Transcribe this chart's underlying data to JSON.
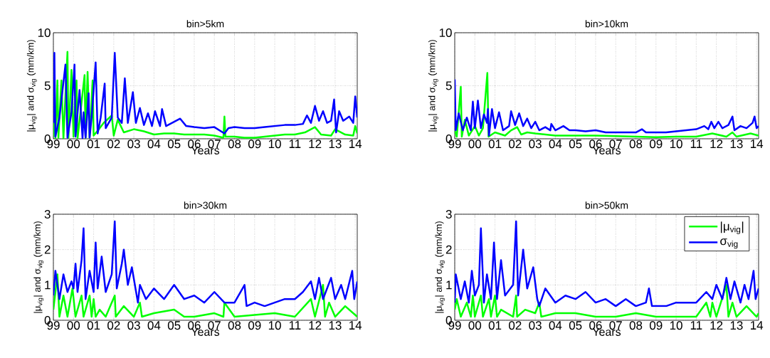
{
  "chart_data": [
    {
      "type": "line",
      "title": "bin>5km",
      "xlabel": "Years",
      "ylabel": "|μ$_{vig}$| and σ$_{vig}$ (mm/km)",
      "xlim": [
        1999,
        2014.1
      ],
      "ylim": [
        0,
        10
      ],
      "xticks": [
        {
          "value": 1999,
          "label": "99"
        },
        {
          "value": 2000,
          "label": "00"
        },
        {
          "value": 2001,
          "label": "01"
        },
        {
          "value": 2002,
          "label": "02"
        },
        {
          "value": 2003,
          "label": "03"
        },
        {
          "value": 2004,
          "label": "04"
        },
        {
          "value": 2005,
          "label": "05"
        },
        {
          "value": 2006,
          "label": "06"
        },
        {
          "value": 2007,
          "label": "07"
        },
        {
          "value": 2008,
          "label": "08"
        },
        {
          "value": 2009,
          "label": "09"
        },
        {
          "value": 2010,
          "label": "10"
        },
        {
          "value": 2011,
          "label": "11"
        },
        {
          "value": 2012,
          "label": "12"
        },
        {
          "value": 2013,
          "label": "13"
        },
        {
          "value": 2014,
          "label": "14"
        }
      ],
      "yticks": [
        0,
        5,
        10
      ],
      "grid": true,
      "series": [
        {
          "color": "#00ff00",
          "x": [
            1999.0,
            1999.05,
            1999.1,
            1999.2,
            1999.25,
            1999.4,
            1999.5,
            1999.7,
            1999.75,
            1999.9,
            2000.0,
            2000.15,
            2000.2,
            2000.55,
            2000.6,
            2000.7,
            2000.8,
            2000.95,
            2001.0,
            2001.3,
            2001.5,
            2001.9,
            2002.0,
            2002.2,
            2002.5,
            2003.0,
            2003.5,
            2004.0,
            2004.5,
            2005.0,
            2005.5,
            2006.0,
            2006.5,
            2007.0,
            2007.45,
            2007.5,
            2007.55,
            2008.0,
            2008.5,
            2009.0,
            2009.5,
            2010.0,
            2010.5,
            2011.0,
            2011.5,
            2012.0,
            2012.3,
            2012.8,
            2013.0,
            2013.5,
            2013.9,
            2014.0,
            2014.1
          ],
          "values": [
            0.2,
            4.5,
            0,
            5.5,
            0.1,
            5.5,
            0,
            8.2,
            0.1,
            6.5,
            0.2,
            5.5,
            0,
            6.0,
            0.1,
            6.3,
            0.1,
            5.5,
            0.3,
            1.0,
            1.5,
            2.2,
            0.3,
            1.8,
            0.6,
            0.9,
            0.7,
            0.4,
            0.5,
            0.5,
            0.4,
            0.4,
            0.4,
            0.3,
            0.1,
            2.1,
            0.2,
            0.2,
            0.1,
            0.1,
            0.2,
            0.3,
            0.4,
            0.4,
            0.6,
            1.1,
            0.4,
            0.3,
            0.9,
            0.4,
            0.3,
            1.2,
            0.5
          ]
        },
        {
          "color": "#0000ff",
          "x": [
            1999.0,
            1999.05,
            1999.1,
            1999.3,
            1999.6,
            1999.7,
            1999.9,
            2000.05,
            2000.1,
            2000.3,
            2000.45,
            2000.5,
            2000.6,
            2000.75,
            2000.8,
            2000.9,
            2001.1,
            2001.2,
            2001.35,
            2001.55,
            2001.6,
            2001.9,
            2002.05,
            2002.2,
            2002.4,
            2002.55,
            2002.7,
            2002.95,
            2003.1,
            2003.3,
            2003.5,
            2003.7,
            2003.9,
            2004.05,
            2004.3,
            2004.4,
            2004.6,
            2005.0,
            2005.3,
            2005.6,
            2006.0,
            2006.5,
            2007.0,
            2007.5,
            2007.7,
            2008.0,
            2008.5,
            2009.0,
            2009.5,
            2010.0,
            2010.5,
            2011.0,
            2011.4,
            2011.6,
            2011.8,
            2012.0,
            2012.2,
            2012.4,
            2012.6,
            2012.8,
            2012.95,
            2013.05,
            2013.2,
            2013.4,
            2013.7,
            2013.9,
            2014.0,
            2014.1
          ],
          "values": [
            1.5,
            8.1,
            0.2,
            2.0,
            7.0,
            0.1,
            2.5,
            7.0,
            0.2,
            4.6,
            0,
            2.5,
            0.1,
            4.3,
            0.1,
            2.0,
            7.2,
            0.5,
            2.0,
            5.2,
            1.0,
            2.0,
            8.1,
            2.0,
            1.5,
            5.7,
            1.5,
            4.4,
            1.5,
            2.9,
            1.3,
            2.4,
            1.2,
            2.6,
            1.2,
            2.8,
            1.2,
            1.6,
            1.9,
            1.2,
            1.1,
            1.0,
            1.1,
            0.5,
            1.0,
            1.1,
            1.0,
            1.0,
            1.1,
            1.2,
            1.3,
            1.3,
            1.4,
            2.2,
            1.5,
            3.1,
            1.7,
            2.6,
            1.5,
            1.7,
            3.7,
            0.6,
            2.6,
            1.7,
            2.1,
            1.5,
            4.0,
            2.0
          ]
        }
      ]
    },
    {
      "type": "line",
      "title": "bin>10km",
      "xlabel": "Years",
      "ylabel": "|μ$_{vig}$| and σ$_{vig}$ (mm/km)",
      "xlim": [
        1999,
        2014.1
      ],
      "ylim": [
        0,
        10
      ],
      "xticks": [
        {
          "value": 1999,
          "label": "99"
        },
        {
          "value": 2000,
          "label": "00"
        },
        {
          "value": 2001,
          "label": "01"
        },
        {
          "value": 2002,
          "label": "02"
        },
        {
          "value": 2003,
          "label": "03"
        },
        {
          "value": 2004,
          "label": "04"
        },
        {
          "value": 2005,
          "label": "05"
        },
        {
          "value": 2006,
          "label": "06"
        },
        {
          "value": 2007,
          "label": "07"
        },
        {
          "value": 2008,
          "label": "08"
        },
        {
          "value": 2009,
          "label": "09"
        },
        {
          "value": 2010,
          "label": "10"
        },
        {
          "value": 2011,
          "label": "11"
        },
        {
          "value": 2012,
          "label": "12"
        },
        {
          "value": 2013,
          "label": "13"
        },
        {
          "value": 2014,
          "label": "14"
        }
      ],
      "yticks": [
        0,
        5,
        10
      ],
      "grid": true,
      "series": [
        {
          "color": "#00ff00",
          "x": [
            1999.0,
            1999.1,
            1999.3,
            1999.35,
            1999.5,
            1999.7,
            2000.0,
            2000.2,
            2000.4,
            2000.62,
            2000.68,
            2001.0,
            2001.5,
            2001.8,
            2002.1,
            2002.3,
            2002.6,
            2003.0,
            2003.5,
            2004.0,
            2005.0,
            2006.0,
            2007.0,
            2008.0,
            2009.0,
            2010.0,
            2011.0,
            2011.8,
            2012.5,
            2012.8,
            2013.0,
            2013.7,
            2014.1
          ],
          "values": [
            0.8,
            0.2,
            4.9,
            0.2,
            1.8,
            0.3,
            1.2,
            0.3,
            1.0,
            6.2,
            0.2,
            0.6,
            0.3,
            0.8,
            1.1,
            0.4,
            0.6,
            0.5,
            0.4,
            0.3,
            0.3,
            0.3,
            0.25,
            0.2,
            0.15,
            0.2,
            0.2,
            0.5,
            0.2,
            0.6,
            0.2,
            0.5,
            0.3
          ]
        },
        {
          "color": "#0000ff",
          "x": [
            1999.0,
            1999.05,
            1999.2,
            1999.4,
            1999.6,
            1999.8,
            1999.9,
            2000.0,
            2000.15,
            2000.3,
            2000.45,
            2000.6,
            2000.65,
            2000.7,
            2000.85,
            2001.0,
            2001.2,
            2001.4,
            2001.7,
            2001.8,
            2002.0,
            2002.2,
            2002.4,
            2002.6,
            2002.8,
            2003.0,
            2003.2,
            2003.5,
            2003.75,
            2003.8,
            2004.0,
            2004.4,
            2004.7,
            2005.0,
            2005.5,
            2006.0,
            2006.5,
            2007.0,
            2007.5,
            2008.0,
            2008.3,
            2008.5,
            2009.0,
            2009.5,
            2010.0,
            2010.5,
            2011.0,
            2011.4,
            2011.6,
            2011.75,
            2011.9,
            2012.1,
            2012.3,
            2012.6,
            2012.8,
            2012.9,
            2013.2,
            2013.5,
            2013.8,
            2013.9,
            2014.0,
            2014.1
          ],
          "values": [
            5.6,
            0.8,
            2.4,
            0.8,
            2.0,
            0.8,
            3.5,
            1.0,
            3.6,
            1.0,
            2.3,
            1.5,
            2.8,
            0.3,
            2.8,
            1.0,
            2.5,
            0.8,
            1.2,
            2.6,
            1.3,
            2.4,
            1.2,
            1.9,
            1.0,
            1.6,
            0.8,
            1.1,
            0.8,
            1.4,
            0.8,
            1.2,
            0.8,
            0.8,
            0.7,
            0.8,
            0.6,
            0.6,
            0.6,
            0.6,
            0.9,
            0.6,
            0.6,
            0.6,
            0.7,
            0.8,
            0.9,
            1.2,
            0.9,
            1.6,
            1.0,
            1.6,
            1.0,
            1.3,
            2.1,
            0.8,
            1.2,
            1.0,
            1.5,
            2.1,
            1.0,
            1.2
          ]
        }
      ]
    },
    {
      "type": "line",
      "title": "bin>30km",
      "xlabel": "Years",
      "ylabel": "|μ$_{vig}$| and σ$_{vig}$ (mm/km)",
      "xlim": [
        1999,
        2014.1
      ],
      "ylim": [
        0,
        3
      ],
      "xticks": [
        {
          "value": 1999,
          "label": "99"
        },
        {
          "value": 2000,
          "label": "00"
        },
        {
          "value": 2001,
          "label": "01"
        },
        {
          "value": 2002,
          "label": "02"
        },
        {
          "value": 2003,
          "label": "03"
        },
        {
          "value": 2004,
          "label": "04"
        },
        {
          "value": 2005,
          "label": "05"
        },
        {
          "value": 2006,
          "label": "06"
        },
        {
          "value": 2007,
          "label": "07"
        },
        {
          "value": 2008,
          "label": "08"
        },
        {
          "value": 2009,
          "label": "09"
        },
        {
          "value": 2010,
          "label": "10"
        },
        {
          "value": 2011,
          "label": "11"
        },
        {
          "value": 2012,
          "label": "12"
        },
        {
          "value": 2013,
          "label": "13"
        },
        {
          "value": 2014,
          "label": "14"
        }
      ],
      "yticks": [
        0,
        1,
        2,
        3
      ],
      "grid": true,
      "series": [
        {
          "color": "#00ff00",
          "x": [
            1999.0,
            1999.2,
            1999.3,
            1999.5,
            1999.7,
            1999.95,
            2000.1,
            2000.4,
            2000.5,
            2000.8,
            2000.9,
            2001.0,
            2001.1,
            2001.3,
            2001.6,
            2002.05,
            2002.1,
            2002.5,
            2003.0,
            2003.3,
            2003.4,
            2004.0,
            2005.0,
            2005.5,
            2006.0,
            2007.0,
            2007.45,
            2007.5,
            2008.0,
            2009.0,
            2010.0,
            2011.0,
            2011.8,
            2012.0,
            2012.4,
            2012.5,
            2012.7,
            2013.0,
            2013.5,
            2014.0,
            2014.1
          ],
          "values": [
            0.3,
            1.3,
            0.1,
            0.7,
            0.1,
            0.9,
            0.1,
            0.7,
            0.1,
            0.7,
            0.1,
            0.6,
            0.1,
            0.3,
            0.1,
            0.7,
            0.1,
            0.4,
            0.1,
            0.5,
            0.1,
            0.2,
            0.3,
            0.1,
            0.1,
            0.2,
            0.1,
            0.5,
            0.1,
            0.15,
            0.2,
            0.1,
            0.6,
            0.1,
            1.0,
            0.1,
            0.5,
            0.1,
            0.4,
            0.15,
            0.1
          ]
        },
        {
          "color": "#0000ff",
          "x": [
            1999.0,
            1999.1,
            1999.3,
            1999.5,
            1999.7,
            1999.9,
            2000.0,
            2000.1,
            2000.2,
            2000.4,
            2000.5,
            2000.6,
            2000.8,
            2001.0,
            2001.1,
            2001.2,
            2001.4,
            2001.6,
            2001.9,
            2002.05,
            2002.15,
            2002.4,
            2002.5,
            2002.7,
            2002.9,
            2003.2,
            2003.3,
            2003.6,
            2004.0,
            2004.5,
            2005.0,
            2005.5,
            2006.0,
            2006.5,
            2007.0,
            2007.5,
            2008.0,
            2008.4,
            2008.5,
            2008.6,
            2009.0,
            2009.5,
            2010.0,
            2010.5,
            2011.0,
            2011.4,
            2011.8,
            2012.0,
            2012.2,
            2012.4,
            2012.8,
            2013.0,
            2013.3,
            2013.5,
            2013.85,
            2013.95,
            2014.1
          ],
          "values": [
            0.7,
            1.4,
            0.6,
            1.3,
            0.8,
            1.1,
            0.9,
            1.6,
            0.8,
            1.7,
            2.6,
            0.6,
            1.4,
            0.8,
            2.2,
            0.9,
            1.8,
            0.8,
            1.3,
            2.8,
            0.9,
            1.6,
            2.0,
            1.0,
            1.5,
            0.5,
            1.0,
            0.6,
            0.9,
            0.6,
            1.0,
            0.6,
            0.7,
            0.5,
            0.8,
            0.5,
            0.5,
            0.9,
            1.0,
            0.4,
            0.5,
            0.4,
            0.5,
            0.6,
            0.6,
            0.8,
            1.1,
            0.6,
            1.2,
            0.6,
            1.2,
            0.6,
            1.0,
            0.6,
            1.4,
            0.6,
            1.1
          ]
        }
      ]
    },
    {
      "type": "line",
      "title": "bin>50km",
      "xlabel": "Years",
      "ylabel": "|μ$_{vig}$| and σ$_{vig}$ (mm/km)",
      "xlim": [
        1999,
        2014.1
      ],
      "ylim": [
        0,
        3
      ],
      "xticks": [
        {
          "value": 1999,
          "label": "99"
        },
        {
          "value": 2000,
          "label": "00"
        },
        {
          "value": 2001,
          "label": "01"
        },
        {
          "value": 2002,
          "label": "02"
        },
        {
          "value": 2003,
          "label": "03"
        },
        {
          "value": 2004,
          "label": "04"
        },
        {
          "value": 2005,
          "label": "05"
        },
        {
          "value": 2006,
          "label": "06"
        },
        {
          "value": 2007,
          "label": "07"
        },
        {
          "value": 2008,
          "label": "08"
        },
        {
          "value": 2009,
          "label": "09"
        },
        {
          "value": 2010,
          "label": "10"
        },
        {
          "value": 2011,
          "label": "11"
        },
        {
          "value": 2012,
          "label": "12"
        },
        {
          "value": 2013,
          "label": "13"
        },
        {
          "value": 2014,
          "label": "14"
        }
      ],
      "yticks": [
        0,
        1,
        2,
        3
      ],
      "grid": true,
      "legend": "top right",
      "series": [
        {
          "name": "|μ$_{vig}$|",
          "color": "#00ff00",
          "x": [
            1999.0,
            1999.1,
            1999.3,
            1999.6,
            1999.8,
            1999.9,
            2000.0,
            2000.3,
            2000.4,
            2000.7,
            2000.8,
            2001.0,
            2001.1,
            2001.3,
            2001.9,
            2002.05,
            2002.1,
            2002.5,
            2003.0,
            2003.2,
            2003.3,
            2004.0,
            2005.0,
            2006.0,
            2007.0,
            2008.0,
            2009.0,
            2010.0,
            2011.0,
            2011.5,
            2011.7,
            2011.8,
            2012.0,
            2012.5,
            2012.6,
            2012.8,
            2013.0,
            2013.5,
            2014.0,
            2014.1
          ],
          "values": [
            0.3,
            0.6,
            0.1,
            0.5,
            0.1,
            0.7,
            0.1,
            0.7,
            0.1,
            0.6,
            0.1,
            0.7,
            0.1,
            0.3,
            0.1,
            0.7,
            0.1,
            0.3,
            0.2,
            0.5,
            0.1,
            0.2,
            0.2,
            0.1,
            0.1,
            0.2,
            0.1,
            0.1,
            0.1,
            0.5,
            0.1,
            0.5,
            0.1,
            1.0,
            0.1,
            0.5,
            0.1,
            0.4,
            0.1,
            0.2
          ]
        },
        {
          "name": "σ$_{vig}$",
          "color": "#0000ff",
          "x": [
            1999.0,
            1999.05,
            1999.3,
            1999.5,
            1999.7,
            1999.85,
            2000.0,
            2000.2,
            2000.3,
            2000.45,
            2000.6,
            2000.8,
            2000.95,
            2001.1,
            2001.3,
            2001.5,
            2001.9,
            2002.05,
            2002.15,
            2002.4,
            2002.6,
            2002.9,
            2003.1,
            2003.2,
            2003.5,
            2004.0,
            2004.5,
            2005.0,
            2005.5,
            2006.0,
            2006.5,
            2007.0,
            2007.5,
            2008.0,
            2008.5,
            2008.65,
            2008.8,
            2009.5,
            2010.0,
            2010.5,
            2011.0,
            2011.5,
            2011.8,
            2012.0,
            2012.3,
            2012.5,
            2012.7,
            2012.9,
            2013.2,
            2013.4,
            2013.6,
            2013.85,
            2013.95,
            2014.1
          ],
          "values": [
            0.5,
            1.3,
            0.6,
            1.1,
            0.5,
            1.4,
            0.7,
            1.0,
            2.6,
            0.5,
            1.3,
            0.6,
            2.2,
            0.6,
            1.7,
            0.7,
            1.0,
            2.8,
            0.7,
            2.0,
            0.9,
            1.5,
            0.6,
            0.4,
            0.9,
            0.5,
            0.7,
            0.6,
            0.8,
            0.5,
            0.6,
            0.4,
            0.6,
            0.4,
            0.5,
            0.9,
            0.4,
            0.4,
            0.5,
            0.5,
            0.5,
            0.8,
            0.6,
            1.0,
            0.6,
            1.2,
            0.6,
            1.1,
            0.5,
            1.0,
            0.6,
            1.4,
            0.6,
            0.9
          ]
        }
      ]
    }
  ]
}
